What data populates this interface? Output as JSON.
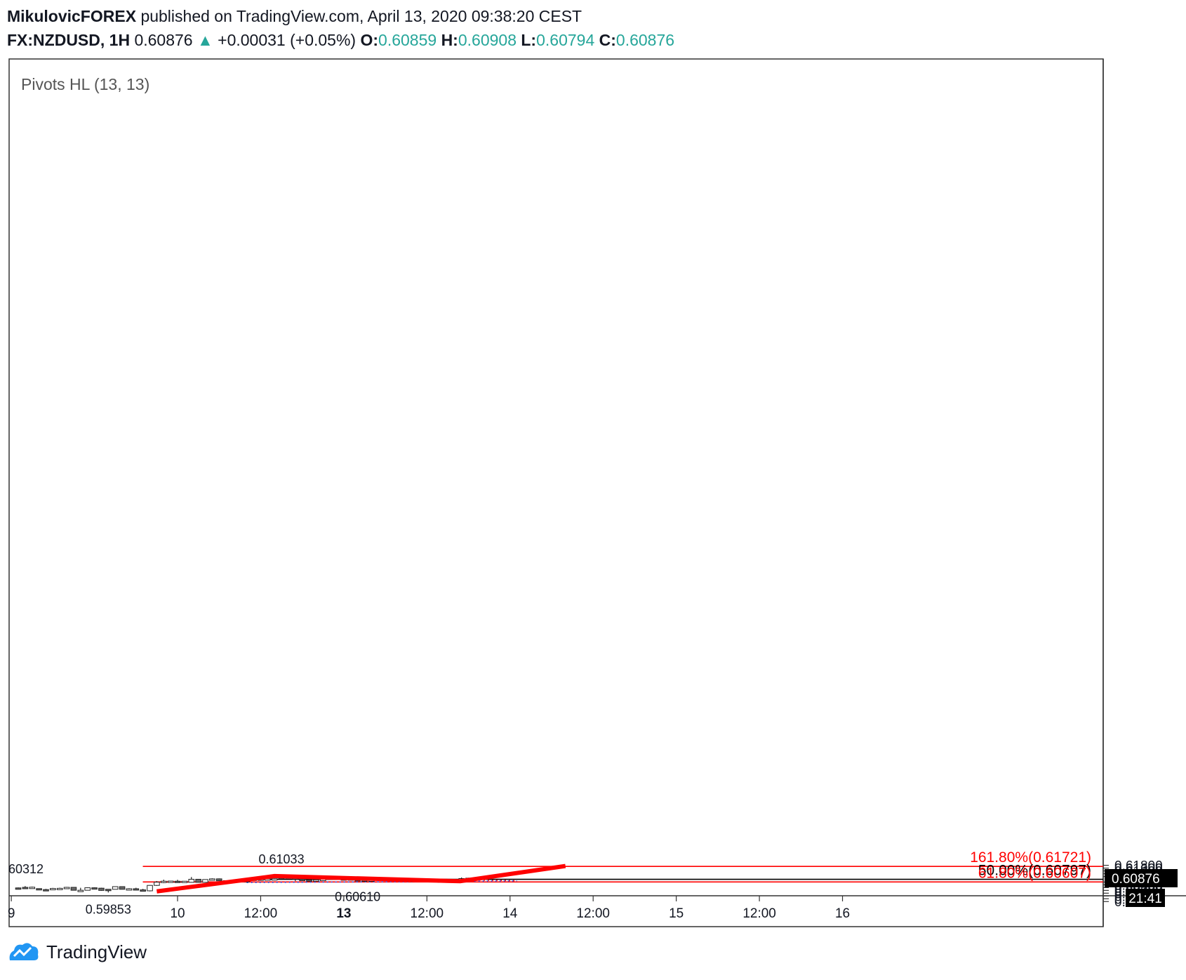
{
  "header": {
    "author": "MikulovicFOREX",
    "published": "published on TradingView.com, April 13, 2020 09:38:20 CEST",
    "symbol": "FX:NZDUSD, 1H",
    "last": "0.60876",
    "arrow": "▲",
    "change": "+0.00031 (+0.05%)",
    "o_label": "O:",
    "o_value": "0.60859",
    "h_label": "H:",
    "h_value": "0.60908",
    "l_label": "L:",
    "l_value": "0.60794",
    "c_label": "C:",
    "c_value": "0.60876"
  },
  "indicator_label": "Pivots HL (13, 13)",
  "footer": {
    "brand": "TradingView",
    "logo_icon": "tradingview-logo-icon"
  },
  "colors": {
    "up": "#ffffff",
    "down": "#6b6b6b",
    "red": "#ff0000",
    "green": "#26a69a",
    "blue": "#2962ff"
  },
  "chart_data": {
    "type": "candlestick",
    "y_range": [
      0.591,
      0.6185
    ],
    "y_ticks": [
      {
        "value": 0.618,
        "label": "0.61800"
      },
      {
        "value": 0.616,
        "label": "0.61600"
      },
      {
        "value": 0.614,
        "label": "0.61400"
      },
      {
        "value": 0.612,
        "label": "0.61200"
      },
      {
        "value": 0.61,
        "label": "0.61000"
      },
      {
        "value": 0.606,
        "label": "0.60600"
      },
      {
        "value": 0.604,
        "label": "0.60400"
      },
      {
        "value": 0.602,
        "label": "0.60200"
      },
      {
        "value": 0.6,
        "label": "0.60000"
      },
      {
        "value": 0.598,
        "label": "0.59800"
      },
      {
        "value": 0.596,
        "label": "0.59600"
      },
      {
        "value": 0.594,
        "label": "0.59400"
      },
      {
        "value": 0.592,
        "label": "0.59200"
      }
    ],
    "x_range": [
      -7,
      117
    ],
    "x_ticks": [
      {
        "bar": -1,
        "label": "9",
        "bold": false
      },
      {
        "bar": 23,
        "label": "10",
        "bold": false
      },
      {
        "bar": 35,
        "label": "12:00",
        "bold": false
      },
      {
        "bar": 47,
        "label": "13",
        "bold": true
      },
      {
        "bar": 59,
        "label": "12:00",
        "bold": false
      },
      {
        "bar": 71,
        "label": "14",
        "bold": false
      },
      {
        "bar": 83,
        "label": "12:00",
        "bold": false
      },
      {
        "bar": 95,
        "label": "15",
        "bold": false
      },
      {
        "bar": 107,
        "label": "12:00",
        "bold": false
      },
      {
        "bar": 119,
        "label": "16",
        "bold": false
      }
    ],
    "ohlc": [
      [
        0.6018,
        0.6021,
        0.6016,
        0.6017
      ],
      [
        0.6022,
        0.6031,
        0.6016,
        0.6017
      ],
      [
        0.6016,
        0.6027,
        0.6013,
        0.6023
      ],
      [
        0.6013,
        0.6014,
        0.6004,
        0.6005
      ],
      [
        0.6006,
        0.6011,
        0.5998,
        0.6005
      ],
      [
        0.6006,
        0.6018,
        0.6005,
        0.6014
      ],
      [
        0.6015,
        0.6019,
        0.6012,
        0.6015
      ],
      [
        0.6016,
        0.6025,
        0.6014,
        0.6022
      ],
      [
        0.6022,
        0.6024,
        0.6,
        0.6001
      ],
      [
        0.6001,
        0.6019,
        0.5999,
        0.6001
      ],
      [
        0.6001,
        0.6022,
        0.6,
        0.6019
      ],
      [
        0.6019,
        0.6022,
        0.6009,
        0.6015
      ],
      [
        0.6016,
        0.6019,
        0.5997,
        0.6
      ],
      [
        0.6008,
        0.6008,
        0.5985,
        0.6
      ],
      [
        0.6008,
        0.6028,
        0.6007,
        0.6027
      ],
      [
        0.6027,
        0.6028,
        0.6008,
        0.6008
      ],
      [
        0.6008,
        0.6016,
        0.6003,
        0.6012
      ],
      [
        0.6012,
        0.6019,
        0.6003,
        0.6005
      ],
      [
        0.6004,
        0.6011,
        0.5993,
        0.5997
      ],
      [
        0.5997,
        0.6038,
        0.5993,
        0.6036
      ],
      [
        0.6036,
        0.6067,
        0.6033,
        0.6059
      ],
      [
        0.6059,
        0.6077,
        0.6052,
        0.6066
      ],
      [
        0.6062,
        0.6067,
        0.6056,
        0.6067
      ],
      [
        0.6066,
        0.6076,
        0.6059,
        0.6065
      ],
      [
        0.6065,
        0.6067,
        0.6062,
        0.6066
      ],
      [
        0.6058,
        0.6096,
        0.6057,
        0.608
      ],
      [
        0.608,
        0.6081,
        0.6058,
        0.6058
      ],
      [
        0.6058,
        0.608,
        0.6057,
        0.6078
      ],
      [
        0.6078,
        0.6087,
        0.6076,
        0.6083
      ],
      [
        0.6083,
        0.6086,
        0.6068,
        0.6069
      ],
      [
        0.6069,
        0.6072,
        0.6067,
        0.607
      ],
      [
        0.6071,
        0.6073,
        0.606,
        0.606
      ],
      [
        0.606,
        0.607,
        0.6059,
        0.6072
      ],
      [
        0.6072,
        0.6076,
        0.6056,
        0.6061
      ],
      [
        0.6071,
        0.6081,
        0.607,
        0.6081
      ],
      [
        0.608,
        0.6085,
        0.6079,
        0.6082
      ],
      [
        0.6082,
        0.6085,
        0.6076,
        0.6083
      ],
      [
        0.6082,
        0.6086,
        0.608,
        0.6084
      ],
      [
        0.6084,
        0.6103,
        0.6083,
        0.6094
      ],
      [
        0.6094,
        0.6099,
        0.609,
        0.6097
      ],
      [
        0.6098,
        0.6098,
        0.6067,
        0.608
      ],
      [
        0.608,
        0.6087,
        0.6069,
        0.6076
      ],
      [
        0.6076,
        0.6081,
        0.607,
        0.6072
      ],
      [
        0.6072,
        0.6085,
        0.607,
        0.6076
      ],
      [
        0.608,
        0.6087,
        0.6074,
        0.608
      ],
      [
        0.608,
        0.6089,
        0.6077,
        0.6088
      ],
      [
        0.6088,
        0.6089,
        0.6078,
        0.6081
      ],
      [
        0.6083,
        0.6084,
        0.608,
        0.6082
      ],
      [
        0.6083,
        0.6085,
        0.6077,
        0.6078
      ],
      [
        0.6078,
        0.608,
        0.6076,
        0.6077
      ],
      [
        0.6075,
        0.6078,
        0.6061,
        0.6071
      ],
      [
        0.6071,
        0.6077,
        0.6066,
        0.6075
      ],
      [
        0.6079,
        0.6091,
        0.6075,
        0.6088
      ],
      [
        0.6088,
        0.6089,
        0.6083,
        0.6085
      ],
      [
        0.6085,
        0.6086,
        0.608,
        0.6081
      ],
      [
        0.6081,
        0.6084,
        0.6078,
        0.6082
      ],
      [
        0.608,
        0.6082,
        0.6063,
        0.6069
      ],
      [
        0.6069,
        0.6075,
        0.6066,
        0.6073
      ],
      [
        0.6073,
        0.6086,
        0.607,
        0.6075
      ],
      [
        0.6075,
        0.6076,
        0.607,
        0.6074
      ],
      [
        0.6074,
        0.6075,
        0.6065,
        0.6067
      ],
      [
        0.6067,
        0.6068,
        0.6065,
        0.6068
      ],
      [
        0.6068,
        0.607,
        0.6066,
        0.607
      ],
      [
        0.607,
        0.6072,
        0.6066,
        0.6066
      ],
      [
        0.6066,
        0.6093,
        0.6065,
        0.6085
      ],
      [
        0.6086,
        0.6091,
        0.608,
        0.6088
      ]
    ],
    "pivots": [
      {
        "bar": 1,
        "value": "60312",
        "pos": "above"
      },
      {
        "bar": 13,
        "value": "0.59853",
        "pos": "below"
      },
      {
        "bar": 38,
        "value": "0.61033",
        "pos": "above"
      },
      {
        "bar": 49,
        "value": "0.60610",
        "pos": "below"
      }
    ],
    "hlines": [
      {
        "value": 0.61721,
        "label": "161.80%(0.61721)",
        "color": "#ff0000",
        "from_bar": 19
      },
      {
        "value": 0.60797,
        "label": "50.00%(0.60797)",
        "color": "#000000",
        "from_bar": 33
      },
      {
        "value": 0.60607,
        "label": "61.80%(0.60607)",
        "color": "#ff0000",
        "from_bar": 19
      }
    ],
    "projection": [
      {
        "bar": 20,
        "value": 0.5993
      },
      {
        "bar": 37,
        "value": 0.6103
      },
      {
        "bar": 63.8,
        "value": 0.6066
      },
      {
        "bar": 79,
        "value": 0.6175
      }
    ],
    "triangle": {
      "upper": [
        {
          "bar": 38,
          "value": 0.6102
        },
        {
          "bar": 72,
          "value": 0.6069
        }
      ],
      "lower": [
        {
          "bar": 33,
          "value": 0.6056
        },
        {
          "bar": 72,
          "value": 0.6068
        }
      ]
    },
    "price_badge": {
      "value": 0.60876,
      "label": "0.60876",
      "time": "21:41"
    }
  }
}
